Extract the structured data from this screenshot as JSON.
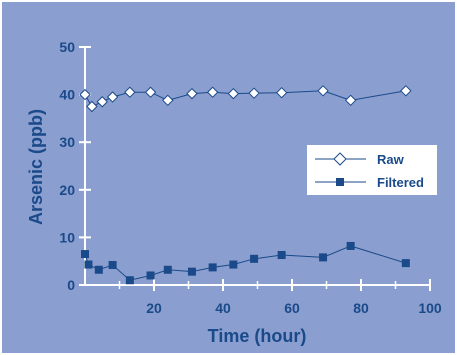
{
  "chart_data": {
    "type": "line",
    "title": "",
    "xlabel": "Time (hour)",
    "ylabel": "Arsenic (ppb)",
    "xlim": [
      0,
      100
    ],
    "ylim": [
      0,
      50
    ],
    "xticks": [
      20,
      40,
      60,
      80,
      100
    ],
    "yticks": [
      0,
      10,
      20,
      30,
      40,
      50
    ],
    "xtick_labels": [
      "20",
      "40",
      "60",
      "80",
      "100"
    ],
    "ytick_labels": [
      "0",
      "10",
      "20",
      "30",
      "40",
      "50"
    ],
    "grid": false,
    "legend": "right",
    "colors": {
      "background": "#8a9ecf",
      "axis": "#ffffff",
      "text": "#1a4a8a",
      "series": "#1a4a8a",
      "marker_fill_raw": "#ffffff"
    },
    "series": [
      {
        "name": "Raw",
        "marker": "diamond-open",
        "x": [
          0,
          2,
          5,
          8,
          13,
          19,
          24,
          31,
          37,
          43,
          49,
          57,
          69,
          77,
          93
        ],
        "y": [
          40,
          37.5,
          38.5,
          39.5,
          40.5,
          40.5,
          38.8,
          40.2,
          40.5,
          40.2,
          40.3,
          40.4,
          40.8,
          38.8,
          40.8
        ]
      },
      {
        "name": "Filtered",
        "marker": "square-filled",
        "x": [
          0,
          1,
          4,
          8,
          13,
          19,
          24,
          31,
          37,
          43,
          49,
          57,
          69,
          77,
          93
        ],
        "y": [
          6.5,
          4.3,
          3.2,
          4.2,
          1.0,
          2.0,
          3.2,
          2.8,
          3.7,
          4.3,
          5.5,
          6.3,
          5.8,
          8.2,
          4.6
        ]
      }
    ]
  }
}
